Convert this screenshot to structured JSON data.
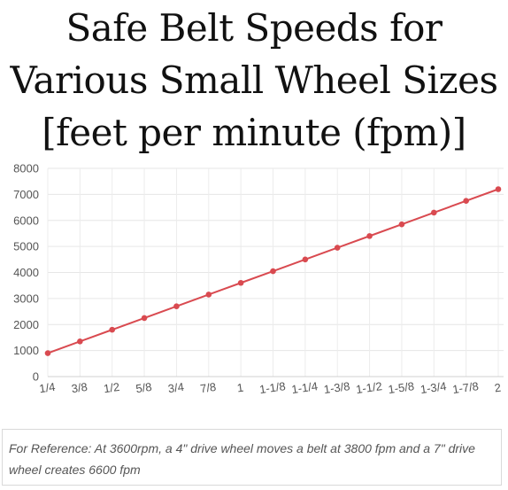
{
  "chart_data": {
    "type": "line",
    "title": "Safe Belt Speeds for Various Small Wheel Sizes [feet per minute (fpm)]",
    "xlabel": "",
    "ylabel": "",
    "categories": [
      "1/4",
      "3/8",
      "1/2",
      "5/8",
      "3/4",
      "7/8",
      "1",
      "1-1/8",
      "1-1/4",
      "1-3/8",
      "1-1/2",
      "1-5/8",
      "1-3/4",
      "1-7/8",
      "2"
    ],
    "series": [
      {
        "values": [
          900,
          1350,
          1800,
          2250,
          2700,
          3150,
          3600,
          4050,
          4500,
          4950,
          5400,
          5850,
          6300,
          6750,
          7200
        ]
      }
    ],
    "ylim": [
      0,
      8000
    ],
    "yticks": [
      "0",
      "1000",
      "2000",
      "3000",
      "4000",
      "5000",
      "6000",
      "7000",
      "8000"
    ],
    "grid": true,
    "line_color": "#d94a50"
  },
  "note": "For Reference: At 3600rpm, a 4\" drive wheel moves a belt at 3800 fpm and a 7\" drive wheel creates 6600 fpm"
}
